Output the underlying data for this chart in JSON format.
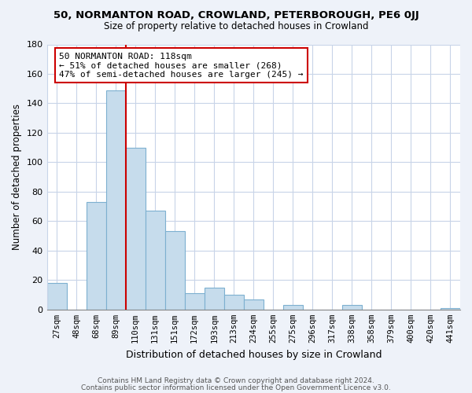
{
  "title": "50, NORMANTON ROAD, CROWLAND, PETERBOROUGH, PE6 0JJ",
  "subtitle": "Size of property relative to detached houses in Crowland",
  "xlabel": "Distribution of detached houses by size in Crowland",
  "ylabel": "Number of detached properties",
  "bar_labels": [
    "27sqm",
    "48sqm",
    "68sqm",
    "89sqm",
    "110sqm",
    "131sqm",
    "151sqm",
    "172sqm",
    "193sqm",
    "213sqm",
    "234sqm",
    "255sqm",
    "275sqm",
    "296sqm",
    "317sqm",
    "338sqm",
    "358sqm",
    "379sqm",
    "400sqm",
    "420sqm",
    "441sqm"
  ],
  "bar_values": [
    18,
    0,
    73,
    149,
    110,
    67,
    53,
    11,
    15,
    10,
    7,
    0,
    3,
    0,
    0,
    3,
    0,
    0,
    0,
    0,
    1
  ],
  "bar_color": "#c6dcec",
  "bar_edge_color": "#7db0d0",
  "vline_pos": 3.5,
  "vline_color": "#cc0000",
  "annotation_title": "50 NORMANTON ROAD: 118sqm",
  "annotation_line1": "← 51% of detached houses are smaller (268)",
  "annotation_line2": "47% of semi-detached houses are larger (245) →",
  "annotation_box_color": "#ffffff",
  "annotation_box_edge": "#cc0000",
  "ylim": [
    0,
    180
  ],
  "yticks": [
    0,
    20,
    40,
    60,
    80,
    100,
    120,
    140,
    160,
    180
  ],
  "footer1": "Contains HM Land Registry data © Crown copyright and database right 2024.",
  "footer2": "Contains public sector information licensed under the Open Government Licence v3.0.",
  "bg_color": "#eef2f9",
  "plot_bg_color": "#ffffff",
  "grid_color": "#c8d4e8"
}
